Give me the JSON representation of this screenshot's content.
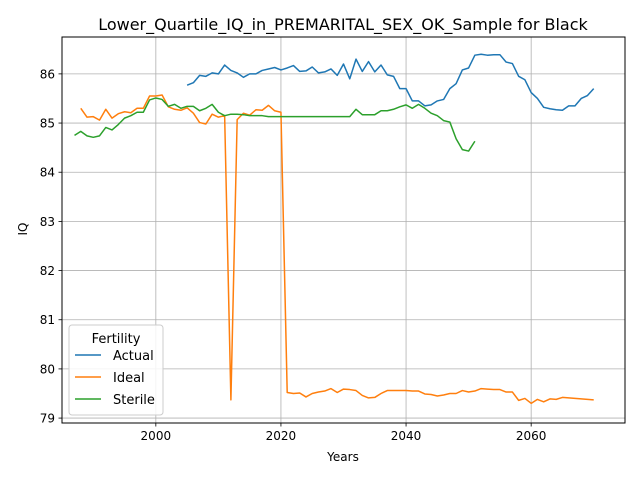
{
  "chart_data": {
    "type": "line",
    "title": "Lower_Quartile_IQ_in_PREMARITAL_SEX_OK_Sample for Black",
    "xlabel": "Years",
    "ylabel": "IQ",
    "xlim": [
      1985,
      2075
    ],
    "ylim": [
      78.9,
      86.75
    ],
    "xticks": [
      2000,
      2020,
      2040,
      2060
    ],
    "yticks": [
      79,
      80,
      81,
      82,
      83,
      84,
      85,
      86
    ],
    "grid": true,
    "legend": {
      "title": "Fertility",
      "placement": "lower-left"
    },
    "series": [
      {
        "name": "Actual",
        "color": "#1f77b4",
        "x": [
          2005,
          2006,
          2007,
          2008,
          2009,
          2010,
          2011,
          2012,
          2013,
          2014,
          2015,
          2016,
          2017,
          2018,
          2019,
          2020,
          2021,
          2022,
          2023,
          2024,
          2025,
          2026,
          2027,
          2028,
          2029,
          2030,
          2031,
          2032,
          2033,
          2034,
          2035,
          2036,
          2037,
          2038,
          2039,
          2040,
          2041,
          2042,
          2043,
          2044,
          2045,
          2046,
          2047,
          2048,
          2049,
          2050,
          2051,
          2052,
          2053,
          2054,
          2055,
          2056,
          2057,
          2058,
          2059,
          2060,
          2061,
          2062,
          2063,
          2064,
          2065,
          2066,
          2067,
          2068,
          2069,
          2070
        ],
        "y": [
          85.77,
          85.82,
          85.97,
          85.95,
          86.02,
          86.0,
          86.18,
          86.07,
          86.02,
          85.93,
          86.0,
          86.0,
          86.07,
          86.1,
          86.13,
          86.08,
          86.12,
          86.17,
          86.05,
          86.06,
          86.14,
          86.02,
          86.04,
          86.1,
          85.97,
          86.2,
          85.9,
          86.3,
          86.05,
          86.25,
          86.04,
          86.18,
          85.98,
          85.95,
          85.7,
          85.7,
          85.45,
          85.45,
          85.35,
          85.37,
          85.45,
          85.48,
          85.7,
          85.8,
          86.08,
          86.12,
          86.38,
          86.4,
          86.38,
          86.39,
          86.39,
          86.24,
          86.21,
          85.95,
          85.88,
          85.62,
          85.5,
          85.32,
          85.29,
          85.27,
          85.26,
          85.35,
          85.35,
          85.5,
          85.56,
          85.7
        ]
      },
      {
        "name": "Ideal",
        "color": "#ff7f0e",
        "x": [
          1988,
          1989,
          1990,
          1991,
          1992,
          1993,
          1994,
          1995,
          1996,
          1997,
          1998,
          1999,
          2000,
          2001,
          2002,
          2003,
          2004,
          2005,
          2006,
          2007,
          2008,
          2009,
          2010,
          2011,
          2012,
          2013,
          2014,
          2015,
          2016,
          2017,
          2018,
          2019,
          2020,
          2021,
          2022,
          2023,
          2024,
          2025,
          2026,
          2027,
          2028,
          2029,
          2030,
          2031,
          2032,
          2033,
          2034,
          2035,
          2036,
          2037,
          2038,
          2039,
          2040,
          2041,
          2042,
          2043,
          2044,
          2045,
          2046,
          2047,
          2048,
          2049,
          2050,
          2051,
          2052,
          2053,
          2054,
          2055,
          2056,
          2057,
          2058,
          2059,
          2060,
          2061,
          2062,
          2063,
          2064,
          2065,
          2066,
          2067,
          2068,
          2069,
          2070
        ],
        "y": [
          85.3,
          85.12,
          85.13,
          85.06,
          85.28,
          85.1,
          85.19,
          85.23,
          85.21,
          85.3,
          85.3,
          85.55,
          85.55,
          85.57,
          85.33,
          85.28,
          85.26,
          85.31,
          85.2,
          85.01,
          84.98,
          85.18,
          85.12,
          85.15,
          79.37,
          85.07,
          85.2,
          85.16,
          85.27,
          85.26,
          85.36,
          85.25,
          85.22,
          79.52,
          79.5,
          79.51,
          79.43,
          79.5,
          79.53,
          79.55,
          79.6,
          79.52,
          79.59,
          79.58,
          79.56,
          79.46,
          79.41,
          79.42,
          79.5,
          79.56,
          79.56,
          79.56,
          79.56,
          79.55,
          79.55,
          79.49,
          79.48,
          79.45,
          79.47,
          79.5,
          79.5,
          79.56,
          79.53,
          79.55,
          79.6,
          79.59,
          79.58,
          79.58,
          79.53,
          79.53,
          79.36,
          79.4,
          79.3,
          79.38,
          79.33,
          79.39,
          79.38,
          79.42,
          79.41,
          79.4,
          79.39,
          79.38,
          79.37
        ]
      },
      {
        "name": "Sterile",
        "color": "#2ca02c",
        "x": [
          1987,
          1988,
          1989,
          1990,
          1991,
          1992,
          1993,
          1994,
          1995,
          1996,
          1997,
          1998,
          1999,
          2000,
          2001,
          2002,
          2003,
          2004,
          2005,
          2006,
          2007,
          2008,
          2009,
          2010,
          2011,
          2012,
          2013,
          2014,
          2015,
          2016,
          2017,
          2018,
          2019,
          2020,
          2021,
          2022,
          2023,
          2024,
          2025,
          2026,
          2027,
          2028,
          2029,
          2030,
          2031,
          2032,
          2033,
          2034,
          2035,
          2036,
          2037,
          2038,
          2039,
          2040,
          2041,
          2042,
          2043,
          2044,
          2045,
          2046,
          2047,
          2048,
          2049,
          2050,
          2051
        ],
        "y": [
          84.75,
          84.83,
          84.74,
          84.71,
          84.74,
          84.91,
          84.86,
          84.97,
          85.1,
          85.15,
          85.22,
          85.22,
          85.47,
          85.51,
          85.48,
          85.34,
          85.38,
          85.3,
          85.34,
          85.34,
          85.25,
          85.3,
          85.38,
          85.22,
          85.15,
          85.18,
          85.18,
          85.17,
          85.15,
          85.15,
          85.15,
          85.13,
          85.13,
          85.13,
          85.13,
          85.13,
          85.13,
          85.13,
          85.13,
          85.13,
          85.13,
          85.13,
          85.13,
          85.13,
          85.13,
          85.28,
          85.17,
          85.17,
          85.17,
          85.25,
          85.25,
          85.28,
          85.33,
          85.37,
          85.3,
          85.38,
          85.3,
          85.2,
          85.15,
          85.05,
          85.02,
          84.68,
          84.46,
          84.43,
          84.63
        ]
      }
    ]
  }
}
